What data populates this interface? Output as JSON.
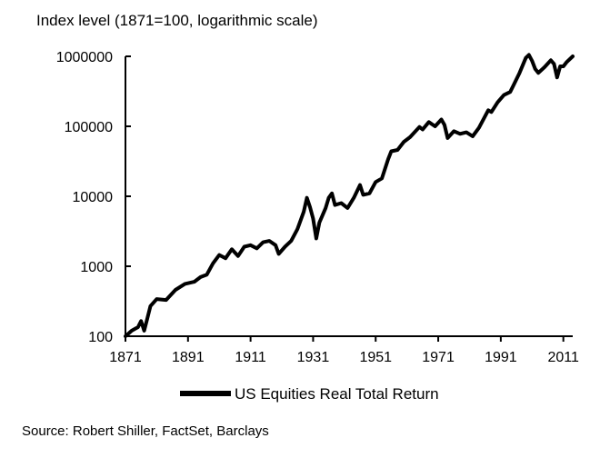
{
  "chart_data": {
    "type": "line",
    "ylabel": "Index level (1871=100, logarithmic scale)",
    "yscale": "log",
    "ylim": [
      100,
      1000000
    ],
    "xlim": [
      1871,
      2014
    ],
    "yticks": [
      "100",
      "1000",
      "10000",
      "100000",
      "1000000"
    ],
    "xticks": [
      "1871",
      "1891",
      "1911",
      "1931",
      "1951",
      "1971",
      "1991",
      "2011"
    ],
    "grid": false,
    "legend_position": "bottom",
    "series": [
      {
        "name": "US Equities Real Total Return",
        "color": "#000000",
        "points": [
          [
            1871,
            100
          ],
          [
            1873,
            120
          ],
          [
            1875,
            135
          ],
          [
            1876,
            165
          ],
          [
            1877,
            120
          ],
          [
            1878,
            180
          ],
          [
            1879,
            270
          ],
          [
            1881,
            340
          ],
          [
            1884,
            330
          ],
          [
            1887,
            460
          ],
          [
            1890,
            560
          ],
          [
            1893,
            600
          ],
          [
            1895,
            700
          ],
          [
            1897,
            760
          ],
          [
            1899,
            1100
          ],
          [
            1901,
            1450
          ],
          [
            1903,
            1300
          ],
          [
            1905,
            1750
          ],
          [
            1907,
            1400
          ],
          [
            1909,
            1900
          ],
          [
            1911,
            2000
          ],
          [
            1913,
            1800
          ],
          [
            1915,
            2200
          ],
          [
            1917,
            2300
          ],
          [
            1919,
            2000
          ],
          [
            1920,
            1500
          ],
          [
            1922,
            1900
          ],
          [
            1924,
            2300
          ],
          [
            1926,
            3400
          ],
          [
            1928,
            6000
          ],
          [
            1929,
            9500
          ],
          [
            1930,
            7000
          ],
          [
            1931,
            4800
          ],
          [
            1932,
            2500
          ],
          [
            1933,
            4200
          ],
          [
            1935,
            6800
          ],
          [
            1936,
            9500
          ],
          [
            1937,
            11000
          ],
          [
            1938,
            7500
          ],
          [
            1940,
            8000
          ],
          [
            1942,
            6800
          ],
          [
            1944,
            9500
          ],
          [
            1946,
            14500
          ],
          [
            1947,
            10500
          ],
          [
            1949,
            11000
          ],
          [
            1951,
            16000
          ],
          [
            1953,
            18000
          ],
          [
            1955,
            34000
          ],
          [
            1956,
            44000
          ],
          [
            1958,
            46000
          ],
          [
            1960,
            60000
          ],
          [
            1962,
            70000
          ],
          [
            1965,
            98000
          ],
          [
            1966,
            90000
          ],
          [
            1968,
            115000
          ],
          [
            1970,
            100000
          ],
          [
            1972,
            125000
          ],
          [
            1973,
            105000
          ],
          [
            1974,
            68000
          ],
          [
            1976,
            85000
          ],
          [
            1978,
            78000
          ],
          [
            1980,
            82000
          ],
          [
            1982,
            72000
          ],
          [
            1984,
            95000
          ],
          [
            1986,
            140000
          ],
          [
            1987,
            170000
          ],
          [
            1988,
            160000
          ],
          [
            1990,
            220000
          ],
          [
            1992,
            280000
          ],
          [
            1994,
            310000
          ],
          [
            1995,
            380000
          ],
          [
            1997,
            580000
          ],
          [
            1999,
            950000
          ],
          [
            2000,
            1050000
          ],
          [
            2001,
            860000
          ],
          [
            2002,
            660000
          ],
          [
            2003,
            580000
          ],
          [
            2005,
            700000
          ],
          [
            2007,
            880000
          ],
          [
            2008,
            780000
          ],
          [
            2009,
            500000
          ],
          [
            2010,
            720000
          ],
          [
            2011,
            720000
          ],
          [
            2012,
            820000
          ],
          [
            2014,
            1000000
          ]
        ]
      }
    ]
  },
  "source": "Source: Robert Shiller, FactSet, Barclays"
}
